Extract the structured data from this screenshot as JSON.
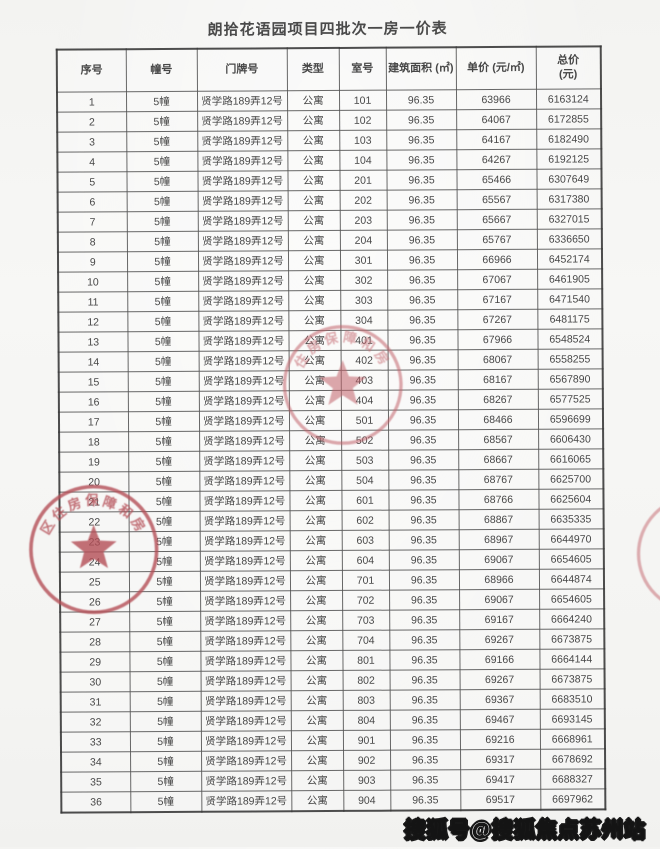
{
  "page": {
    "title": "朗拾花语园项目四批次一房一价表",
    "watermark": "搜狐号@搜狐焦点苏州站"
  },
  "table": {
    "columns": [
      "序号",
      "幢号",
      "门牌号",
      "类型",
      "室号",
      "建筑面积 (㎡)",
      "单价 (元/㎡)",
      "总价\n(元)"
    ],
    "rows": [
      [
        "1",
        "5幢",
        "贤学路189弄12号",
        "公寓",
        "101",
        "96.35",
        "63966",
        "6163124"
      ],
      [
        "2",
        "5幢",
        "贤学路189弄12号",
        "公寓",
        "102",
        "96.35",
        "64067",
        "6172855"
      ],
      [
        "3",
        "5幢",
        "贤学路189弄12号",
        "公寓",
        "103",
        "96.35",
        "64167",
        "6182490"
      ],
      [
        "4",
        "5幢",
        "贤学路189弄12号",
        "公寓",
        "104",
        "96.35",
        "64267",
        "6192125"
      ],
      [
        "5",
        "5幢",
        "贤学路189弄12号",
        "公寓",
        "201",
        "96.35",
        "65466",
        "6307649"
      ],
      [
        "6",
        "5幢",
        "贤学路189弄12号",
        "公寓",
        "202",
        "96.35",
        "65567",
        "6317380"
      ],
      [
        "7",
        "5幢",
        "贤学路189弄12号",
        "公寓",
        "203",
        "96.35",
        "65667",
        "6327015"
      ],
      [
        "8",
        "5幢",
        "贤学路189弄12号",
        "公寓",
        "204",
        "96.35",
        "65767",
        "6336650"
      ],
      [
        "9",
        "5幢",
        "贤学路189弄12号",
        "公寓",
        "301",
        "96.35",
        "66966",
        "6452174"
      ],
      [
        "10",
        "5幢",
        "贤学路189弄12号",
        "公寓",
        "302",
        "96.35",
        "67067",
        "6461905"
      ],
      [
        "11",
        "5幢",
        "贤学路189弄12号",
        "公寓",
        "303",
        "96.35",
        "67167",
        "6471540"
      ],
      [
        "12",
        "5幢",
        "贤学路189弄12号",
        "公寓",
        "304",
        "96.35",
        "67267",
        "6481175"
      ],
      [
        "13",
        "5幢",
        "贤学路189弄12号",
        "公寓",
        "401",
        "96.35",
        "67966",
        "6548524"
      ],
      [
        "14",
        "5幢",
        "贤学路189弄12号",
        "公寓",
        "402",
        "96.35",
        "68067",
        "6558255"
      ],
      [
        "15",
        "5幢",
        "贤学路189弄12号",
        "公寓",
        "403",
        "96.35",
        "68167",
        "6567890"
      ],
      [
        "16",
        "5幢",
        "贤学路189弄12号",
        "公寓",
        "404",
        "96.35",
        "68267",
        "6577525"
      ],
      [
        "17",
        "5幢",
        "贤学路189弄12号",
        "公寓",
        "501",
        "96.35",
        "68466",
        "6596699"
      ],
      [
        "18",
        "5幢",
        "贤学路189弄12号",
        "公寓",
        "502",
        "96.35",
        "68567",
        "6606430"
      ],
      [
        "19",
        "5幢",
        "贤学路189弄12号",
        "公寓",
        "503",
        "96.35",
        "68667",
        "6616065"
      ],
      [
        "20",
        "5幢",
        "贤学路189弄12号",
        "公寓",
        "504",
        "96.35",
        "68767",
        "6625700"
      ],
      [
        "21",
        "5幢",
        "贤学路189弄12号",
        "公寓",
        "601",
        "96.35",
        "68766",
        "6625604"
      ],
      [
        "22",
        "5幢",
        "贤学路189弄12号",
        "公寓",
        "602",
        "96.35",
        "68867",
        "6635335"
      ],
      [
        "23",
        "5幢",
        "贤学路189弄12号",
        "公寓",
        "603",
        "96.35",
        "68967",
        "6644970"
      ],
      [
        "24",
        "5幢",
        "贤学路189弄12号",
        "公寓",
        "604",
        "96.35",
        "69067",
        "6654605"
      ],
      [
        "25",
        "5幢",
        "贤学路189弄12号",
        "公寓",
        "701",
        "96.35",
        "68966",
        "6644874"
      ],
      [
        "26",
        "5幢",
        "贤学路189弄12号",
        "公寓",
        "702",
        "96.35",
        "69067",
        "6654605"
      ],
      [
        "27",
        "5幢",
        "贤学路189弄12号",
        "公寓",
        "703",
        "96.35",
        "69167",
        "6664240"
      ],
      [
        "28",
        "5幢",
        "贤学路189弄12号",
        "公寓",
        "704",
        "96.35",
        "69267",
        "6673875"
      ],
      [
        "29",
        "5幢",
        "贤学路189弄12号",
        "公寓",
        "801",
        "96.35",
        "69166",
        "6664144"
      ],
      [
        "30",
        "5幢",
        "贤学路189弄12号",
        "公寓",
        "802",
        "96.35",
        "69267",
        "6673875"
      ],
      [
        "31",
        "5幢",
        "贤学路189弄12号",
        "公寓",
        "803",
        "96.35",
        "69367",
        "6683510"
      ],
      [
        "32",
        "5幢",
        "贤学路189弄12号",
        "公寓",
        "804",
        "96.35",
        "69467",
        "6693145"
      ],
      [
        "33",
        "5幢",
        "贤学路189弄12号",
        "公寓",
        "901",
        "96.35",
        "69216",
        "6668961"
      ],
      [
        "34",
        "5幢",
        "贤学路189弄12号",
        "公寓",
        "902",
        "96.35",
        "69317",
        "6678692"
      ],
      [
        "35",
        "5幢",
        "贤学路189弄12号",
        "公寓",
        "903",
        "96.35",
        "69417",
        "6688327"
      ],
      [
        "36",
        "5幢",
        "贤学路189弄12号",
        "公寓",
        "904",
        "96.35",
        "69517",
        "6697962"
      ]
    ]
  },
  "stamps": {
    "middle": {
      "arc_text": "住房保障和房",
      "color": "#c2636b"
    },
    "left": {
      "arc_text": "区住房保障和房",
      "color": "#b44e56"
    },
    "right": {
      "arc_text": "",
      "color": "#c2636b"
    }
  }
}
